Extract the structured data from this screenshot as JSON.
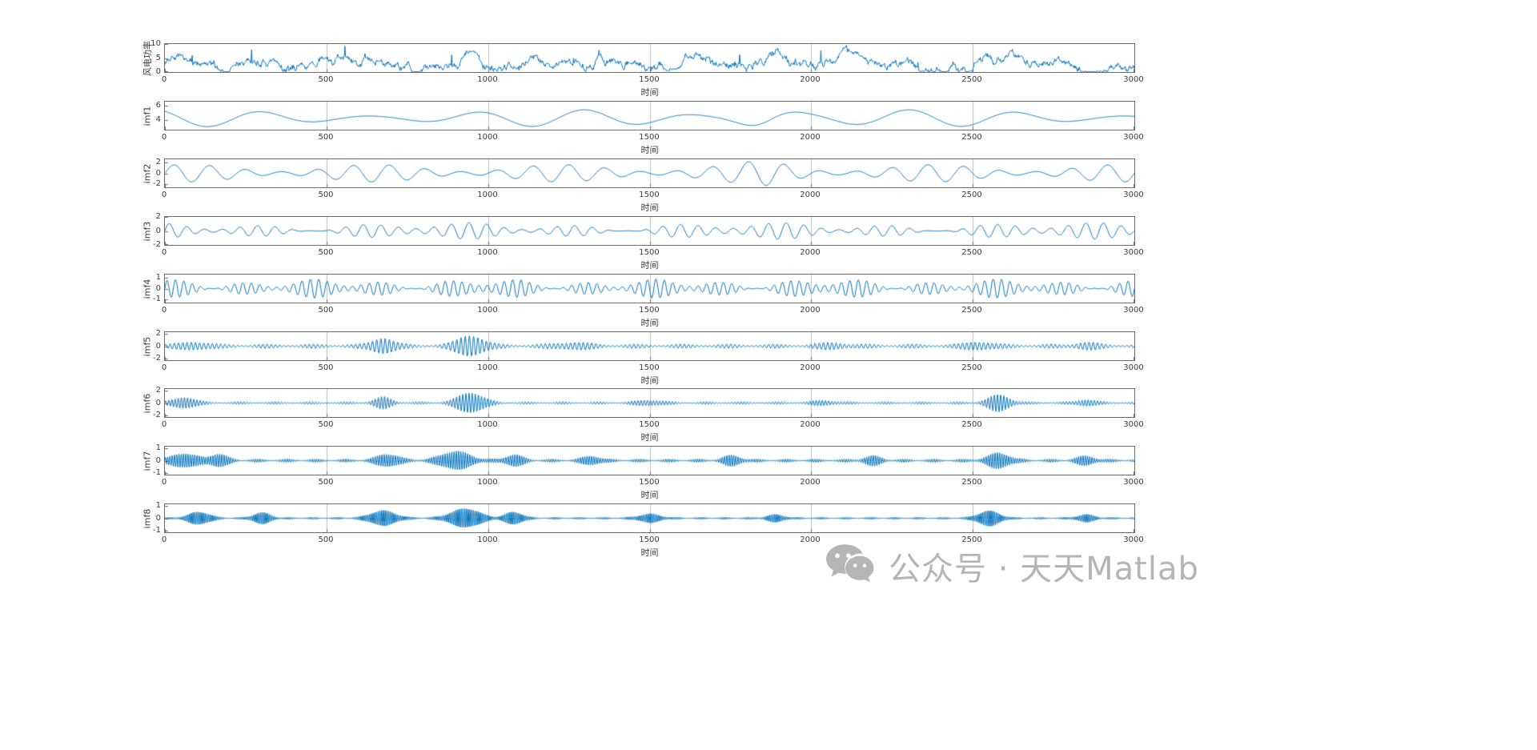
{
  "figure": {
    "background": "#ffffff",
    "line_color": "#0072BD",
    "axis_color": "#6b6b6b",
    "grid_color": "#bdbdbd",
    "tick_font_color": "#3a3a3a"
  },
  "watermark": {
    "icon": "wechat-icon",
    "text": "公众号 · 天天Matlab",
    "color": "#b5b5b5"
  },
  "chart_data": [
    {
      "type": "line",
      "ylabel": "风电功率",
      "xlabel": "时间",
      "xlim": [
        0,
        3000
      ],
      "ylim": [
        0,
        10
      ],
      "xticks": [
        0,
        500,
        1000,
        1500,
        2000,
        2500,
        3000
      ],
      "yticks": [
        0,
        5,
        10
      ],
      "grid_x": true,
      "signal": {
        "kind": "wind",
        "base": 2.6,
        "bursts": [
          {
            "c": 0.315,
            "a": 4.2,
            "w": 0.006
          },
          {
            "c": 0.625,
            "a": 4.0,
            "w": 0.013
          },
          {
            "c": 0.7,
            "a": 2.2,
            "w": 0.008
          },
          {
            "c": 0.87,
            "a": 4.2,
            "w": 0.005
          }
        ]
      }
    },
    {
      "type": "line",
      "ylabel": "imf1",
      "xlabel": "时间",
      "xlim": [
        0,
        3000
      ],
      "ylim": [
        2.7,
        6.6
      ],
      "xticks": [
        0,
        500,
        1000,
        1500,
        2000,
        2500,
        3000
      ],
      "yticks": [
        4,
        6
      ],
      "grid_x": true,
      "signal": {
        "kind": "imf",
        "cycles": 9,
        "base": 0.75,
        "mod": 0.45,
        "modCycles": 2.6,
        "phase": 1.2,
        "carrierPhase": 2.2,
        "offset": 4.3,
        "noise": 0.02,
        "bursts": [
          {
            "c": 0.62,
            "a": 0.9,
            "w": 0.025
          }
        ]
      }
    },
    {
      "type": "line",
      "ylabel": "imf2",
      "xlabel": "时间",
      "xlim": [
        0,
        3000
      ],
      "ylim": [
        -2.6,
        2.6
      ],
      "xticks": [
        0,
        500,
        1000,
        1500,
        2000,
        2500,
        3000
      ],
      "yticks": [
        -2,
        0,
        2
      ],
      "grid_x": true,
      "signal": {
        "kind": "imf",
        "cycles": 27,
        "base": 0.95,
        "mod": 0.65,
        "modCycles": 5.2,
        "phase": 0.8,
        "noise": 0.03,
        "bursts": [
          {
            "c": 0.62,
            "a": 0.8,
            "w": 0.02
          }
        ]
      }
    },
    {
      "type": "line",
      "ylabel": "imf3",
      "xlabel": "时间",
      "xlim": [
        0,
        3000
      ],
      "ylim": [
        -2,
        2
      ],
      "xticks": [
        0,
        500,
        1000,
        1500,
        2000,
        2500,
        3000
      ],
      "yticks": [
        -2,
        0,
        2
      ],
      "grid_x": true,
      "signal": {
        "kind": "imf",
        "cycles": 55,
        "base": 0.55,
        "mod": 0.4,
        "modCycles": 9.3,
        "phase": 2.0,
        "mod2": 0.25,
        "mod2Cycles": 3.1,
        "noise": 0.04
      }
    },
    {
      "type": "line",
      "ylabel": "imf4",
      "xlabel": "时间",
      "xlim": [
        0,
        3000
      ],
      "ylim": [
        -1.3,
        1.3
      ],
      "xticks": [
        0,
        500,
        1000,
        1500,
        2000,
        2500,
        3000
      ],
      "yticks": [
        -1,
        0,
        1
      ],
      "grid_x": true,
      "signal": {
        "kind": "imf",
        "cycles": 115,
        "base": 0.42,
        "mod": 0.3,
        "modCycles": 14.2,
        "phase": 0.5,
        "mod2": 0.18,
        "mod2Cycles": 5.7,
        "noise": 0.03
      }
    },
    {
      "type": "line",
      "ylabel": "imf5",
      "xlabel": "时间",
      "xlim": [
        0,
        3000
      ],
      "ylim": [
        -2.2,
        2.2
      ],
      "xticks": [
        0,
        500,
        1000,
        1500,
        2000,
        2500,
        3000
      ],
      "yticks": [
        -2,
        0,
        2
      ],
      "grid_x": true,
      "signal": {
        "kind": "imf",
        "cycles": 230,
        "base": 0.22,
        "mod": 0.12,
        "modCycles": 21,
        "phase": 0.3,
        "noise": 0.03,
        "bursts": [
          {
            "c": 0.03,
            "a": 0.5,
            "w": 0.012
          },
          {
            "c": 0.225,
            "a": 1.1,
            "w": 0.01
          },
          {
            "c": 0.315,
            "a": 1.5,
            "w": 0.012
          },
          {
            "c": 0.42,
            "a": 0.4,
            "w": 0.015
          },
          {
            "c": 0.69,
            "a": 0.35,
            "w": 0.012
          },
          {
            "c": 0.84,
            "a": 0.5,
            "w": 0.012
          },
          {
            "c": 0.95,
            "a": 0.4,
            "w": 0.01
          }
        ]
      }
    },
    {
      "type": "line",
      "ylabel": "imf6",
      "xlabel": "时间",
      "xlim": [
        0,
        3000
      ],
      "ylim": [
        -2.2,
        2.2
      ],
      "xticks": [
        0,
        500,
        1000,
        1500,
        2000,
        2500,
        3000
      ],
      "yticks": [
        -2,
        0,
        2
      ],
      "grid_x": true,
      "signal": {
        "kind": "imf",
        "cycles": 310,
        "base": 0.13,
        "mod": 0.08,
        "modCycles": 27,
        "phase": 1.1,
        "noise": 0.025,
        "bursts": [
          {
            "c": 0.02,
            "a": 0.8,
            "w": 0.01
          },
          {
            "c": 0.225,
            "a": 0.8,
            "w": 0.008
          },
          {
            "c": 0.315,
            "a": 1.5,
            "w": 0.012
          },
          {
            "c": 0.5,
            "a": 0.35,
            "w": 0.012
          },
          {
            "c": 0.68,
            "a": 0.3,
            "w": 0.01
          },
          {
            "c": 0.86,
            "a": 1.2,
            "w": 0.01
          },
          {
            "c": 0.95,
            "a": 0.45,
            "w": 0.008
          }
        ]
      }
    },
    {
      "type": "line",
      "ylabel": "imf7",
      "xlabel": "时间",
      "xlim": [
        0,
        3000
      ],
      "ylim": [
        -1.1,
        1.1
      ],
      "xticks": [
        0,
        500,
        1000,
        1500,
        2000,
        2500,
        3000
      ],
      "yticks": [
        -1,
        0,
        1
      ],
      "grid_x": true,
      "signal": {
        "kind": "imf",
        "cycles": 430,
        "base": 0.08,
        "mod": 0.05,
        "modCycles": 33,
        "phase": 0.6,
        "noise": 0.02,
        "bursts": [
          {
            "c": 0.02,
            "a": 0.5,
            "w": 0.012
          },
          {
            "c": 0.055,
            "a": 0.45,
            "w": 0.008
          },
          {
            "c": 0.23,
            "a": 0.45,
            "w": 0.01
          },
          {
            "c": 0.3,
            "a": 0.65,
            "w": 0.014
          },
          {
            "c": 0.36,
            "a": 0.4,
            "w": 0.008
          },
          {
            "c": 0.44,
            "a": 0.3,
            "w": 0.008
          },
          {
            "c": 0.585,
            "a": 0.35,
            "w": 0.008
          },
          {
            "c": 0.73,
            "a": 0.3,
            "w": 0.008
          },
          {
            "c": 0.86,
            "a": 0.55,
            "w": 0.01
          },
          {
            "c": 0.95,
            "a": 0.3,
            "w": 0.008
          }
        ]
      }
    },
    {
      "type": "line",
      "ylabel": "imf8",
      "xlabel": "时间",
      "xlim": [
        0,
        3000
      ],
      "ylim": [
        -1.1,
        1.1
      ],
      "xticks": [
        0,
        500,
        1000,
        1500,
        2000,
        2500,
        3000
      ],
      "yticks": [
        -1,
        0,
        1
      ],
      "grid_x": true,
      "signal": {
        "kind": "imf",
        "cycles": 560,
        "base": 0.05,
        "mod": 0.03,
        "modCycles": 40,
        "phase": 0.9,
        "noise": 0.015,
        "bursts": [
          {
            "c": 0.035,
            "a": 0.45,
            "w": 0.01
          },
          {
            "c": 0.1,
            "a": 0.4,
            "w": 0.008
          },
          {
            "c": 0.225,
            "a": 0.55,
            "w": 0.012
          },
          {
            "c": 0.31,
            "a": 0.7,
            "w": 0.014
          },
          {
            "c": 0.36,
            "a": 0.45,
            "w": 0.008
          },
          {
            "c": 0.5,
            "a": 0.3,
            "w": 0.01
          },
          {
            "c": 0.63,
            "a": 0.25,
            "w": 0.008
          },
          {
            "c": 0.85,
            "a": 0.55,
            "w": 0.01
          },
          {
            "c": 0.95,
            "a": 0.25,
            "w": 0.008
          }
        ]
      }
    }
  ]
}
